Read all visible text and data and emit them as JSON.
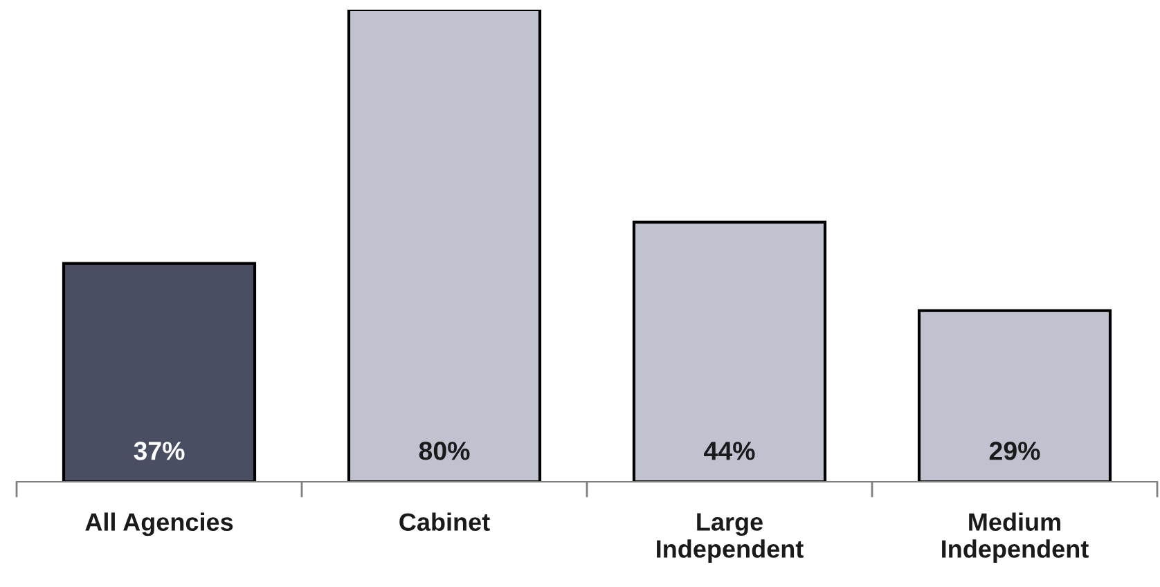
{
  "chart_data": {
    "type": "bar",
    "categories": [
      "All Agencies",
      "Cabinet",
      "Large\nIndependent",
      "Medium\nIndependent"
    ],
    "values": [
      37,
      80,
      44,
      29
    ],
    "value_labels": [
      "37%",
      "80%",
      "44%",
      "29%"
    ],
    "colors": [
      "#4a4e62",
      "#c0c3cf",
      "#c0c3cf",
      "#c0c3cf"
    ],
    "grid": false,
    "legend": false
  }
}
